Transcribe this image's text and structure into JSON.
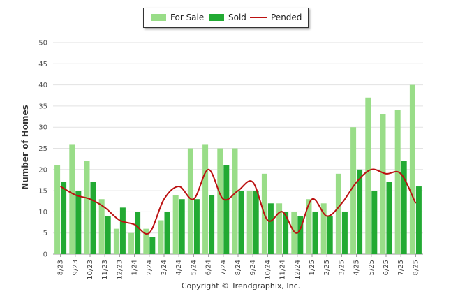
{
  "chart_data": {
    "type": "bar",
    "ylabel": "Number of Homes",
    "xlabel": "",
    "ylim": [
      0,
      50
    ],
    "yticks": [
      0,
      5,
      10,
      15,
      20,
      25,
      30,
      35,
      40,
      45,
      50
    ],
    "grid": true,
    "legend_position": "top-center",
    "categories": [
      "8/23",
      "9/23",
      "10/23",
      "11/23",
      "12/23",
      "1/24",
      "2/24",
      "3/24",
      "4/24",
      "5/24",
      "6/24",
      "7/24",
      "8/24",
      "9/24",
      "10/24",
      "11/24",
      "12/24",
      "1/25",
      "2/25",
      "3/25",
      "4/25",
      "5/25",
      "6/25",
      "7/25",
      "8/25"
    ],
    "series": [
      {
        "name": "For Sale",
        "type": "bar",
        "color": "#99dd88",
        "values": [
          21,
          26,
          22,
          13,
          6,
          5,
          6,
          8,
          14,
          25,
          26,
          25,
          25,
          15,
          19,
          12,
          10,
          13,
          12,
          19,
          30,
          37,
          33,
          34,
          40
        ]
      },
      {
        "name": "Sold",
        "type": "bar",
        "color": "#22aa33",
        "values": [
          17,
          15,
          17,
          9,
          11,
          10,
          4,
          10,
          13,
          13,
          14,
          21,
          15,
          15,
          12,
          10,
          9,
          10,
          9,
          10,
          20,
          15,
          17,
          22,
          16
        ]
      },
      {
        "name": "Pended",
        "type": "line",
        "color": "#bb1111",
        "values": [
          16,
          14,
          13,
          11,
          8,
          7,
          5,
          13,
          16,
          13,
          20,
          13,
          15,
          17,
          8,
          10,
          5,
          13,
          9,
          12,
          17,
          20,
          19,
          19,
          12
        ]
      }
    ]
  },
  "footer": {
    "copyright": "Copyright © Trendgraphix, Inc."
  }
}
